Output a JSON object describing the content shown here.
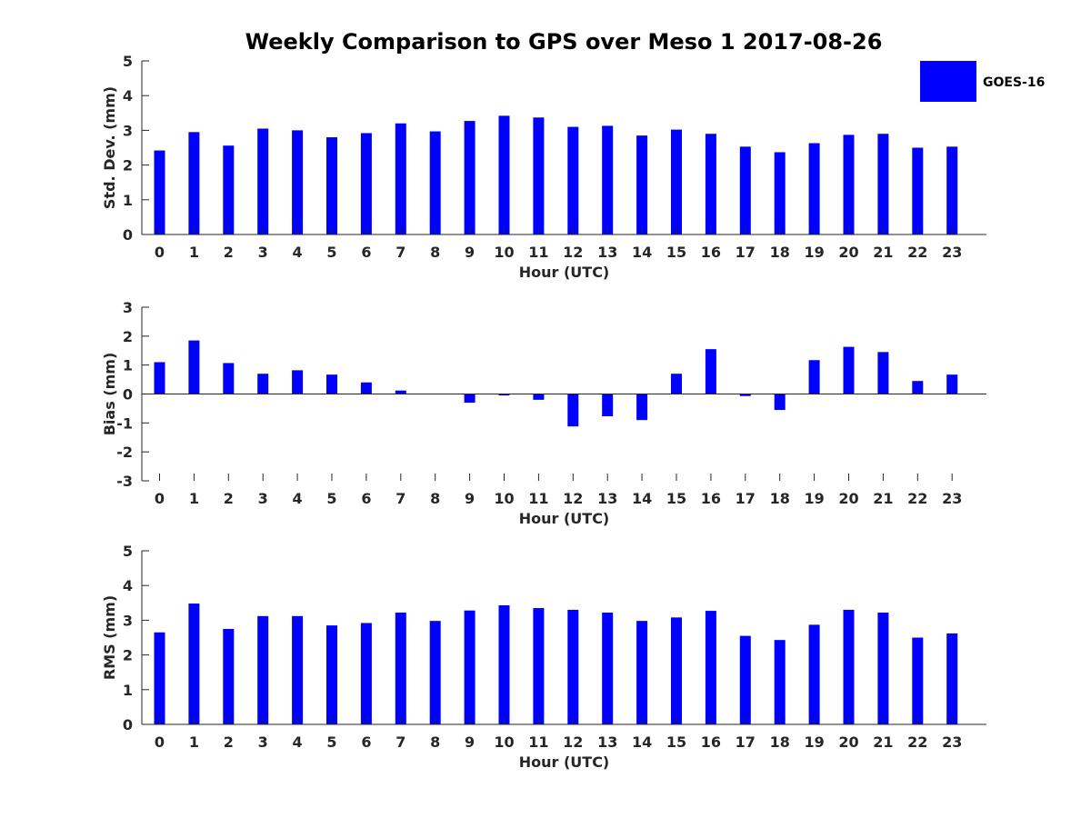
{
  "chart_data": {
    "title": "Weekly Comparison to GPS over Meso 1 2017-08-26",
    "legend": {
      "label": "GOES-16",
      "color": "#0000ff",
      "placement": "top-right"
    },
    "categories": [
      "0",
      "1",
      "2",
      "3",
      "4",
      "5",
      "6",
      "7",
      "8",
      "9",
      "10",
      "11",
      "12",
      "13",
      "14",
      "15",
      "16",
      "17",
      "18",
      "19",
      "20",
      "21",
      "22",
      "23"
    ],
    "subplots": [
      {
        "type": "bar",
        "ylabel": "Std. Dev. (mm)",
        "xlabel": "Hour (UTC)",
        "ylim": [
          0,
          5
        ],
        "yticks": [
          "0",
          "1",
          "2",
          "3",
          "4",
          "5"
        ],
        "series": [
          {
            "name": "GOES-16",
            "values": [
              2.42,
              2.95,
              2.56,
              3.05,
              3.0,
              2.8,
              2.92,
              3.2,
              2.97,
              3.27,
              3.42,
              3.37,
              3.1,
              3.13,
              2.85,
              3.02,
              2.9,
              2.53,
              2.37,
              2.63,
              2.87,
              2.9,
              2.5,
              2.53
            ]
          }
        ]
      },
      {
        "type": "bar",
        "ylabel": "Bias (mm)",
        "xlabel": "Hour (UTC)",
        "ylim": [
          -3,
          3
        ],
        "yticks": [
          "-3",
          "-2",
          "-1",
          "0",
          "1",
          "2",
          "3"
        ],
        "series": [
          {
            "name": "GOES-16",
            "values": [
              1.1,
              1.85,
              1.07,
              0.7,
              0.82,
              0.67,
              0.4,
              0.12,
              0.0,
              -0.3,
              -0.05,
              -0.2,
              -1.12,
              -0.77,
              -0.9,
              0.7,
              1.55,
              -0.07,
              -0.55,
              1.17,
              1.63,
              1.45,
              0.45,
              0.67
            ]
          }
        ]
      },
      {
        "type": "bar",
        "ylabel": "RMS (mm)",
        "xlabel": "Hour (UTC)",
        "ylim": [
          0,
          5
        ],
        "yticks": [
          "0",
          "1",
          "2",
          "3",
          "4",
          "5"
        ],
        "series": [
          {
            "name": "GOES-16",
            "values": [
              2.65,
              3.48,
              2.75,
              3.12,
              3.12,
              2.85,
              2.92,
              3.22,
              2.98,
              3.28,
              3.43,
              3.35,
              3.3,
              3.22,
              2.98,
              3.08,
              3.27,
              2.55,
              2.43,
              2.87,
              3.3,
              3.22,
              2.5,
              2.62
            ]
          }
        ]
      }
    ]
  }
}
